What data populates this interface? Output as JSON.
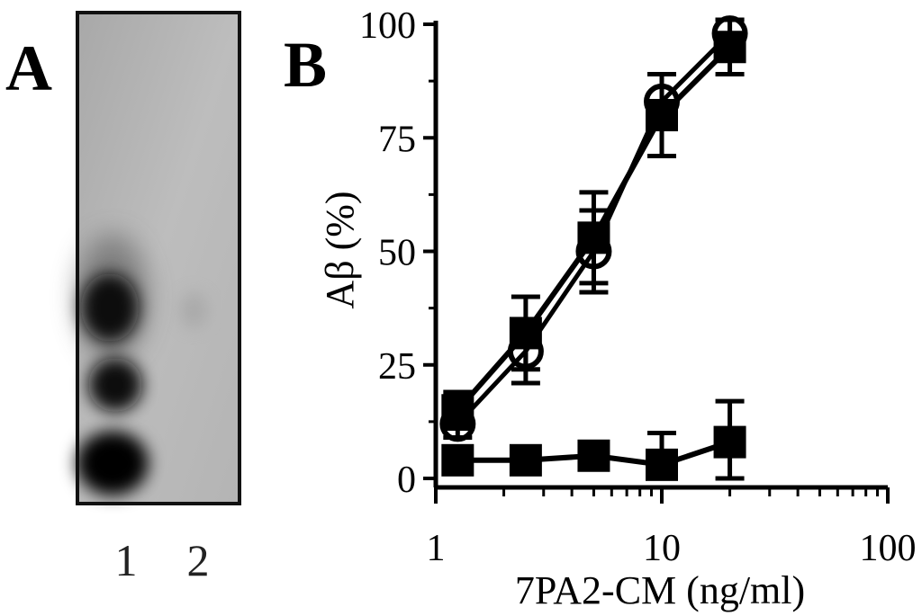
{
  "panel_a": {
    "label": "A",
    "lanes": [
      "1",
      "2"
    ]
  },
  "chart_data": {
    "panel_label": "B",
    "type": "line",
    "title": "",
    "xlabel": "7PA2-CM (ng/ml)",
    "ylabel": "Aβ (%)",
    "x_scale": "log",
    "xlim": [
      1,
      100
    ],
    "ylim": [
      0,
      100
    ],
    "x_ticks": [
      "1",
      "10",
      "100"
    ],
    "y_ticks": [
      "0",
      "25",
      "50",
      "75",
      "100"
    ],
    "x": [
      1.25,
      2.5,
      5,
      10,
      20
    ],
    "grid": false,
    "legend": "none",
    "series": [
      {
        "marker": "filled-square",
        "values": [
          15,
          32,
          53,
          80,
          95
        ],
        "error": [
          4,
          8,
          10,
          9,
          6
        ]
      },
      {
        "marker": "open-circle",
        "values": [
          12,
          28,
          50,
          83,
          98
        ],
        "error": [
          3,
          7,
          9,
          6,
          3
        ]
      },
      {
        "marker": "filled-square",
        "values": [
          4,
          4,
          5,
          3,
          8
        ],
        "error": [
          2,
          2,
          2,
          7,
          9
        ]
      }
    ]
  }
}
